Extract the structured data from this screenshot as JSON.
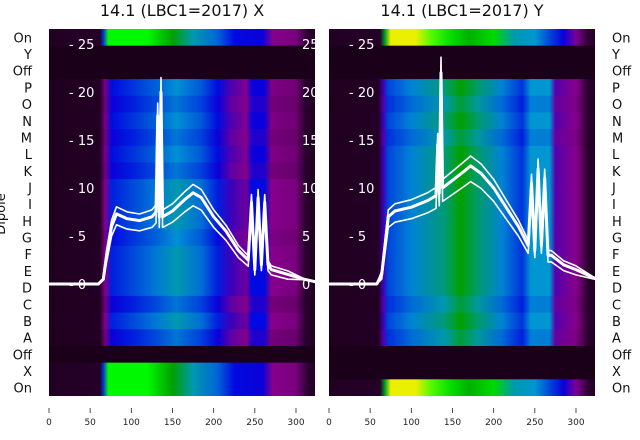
{
  "chart_data": [
    {
      "type": "heatmap",
      "title": "14.1 (LBC1=2017) X",
      "ylabel": "Dipole",
      "row_labels": [
        "On",
        "Y",
        "Off",
        "P",
        "O",
        "N",
        "M",
        "L",
        "K",
        "J",
        "I",
        "H",
        "G",
        "F",
        "E",
        "D",
        "C",
        "B",
        "A",
        "Off",
        "X",
        "On"
      ],
      "row_types": [
        "on",
        "dark",
        "dark",
        "main",
        "main",
        "main",
        "main",
        "main",
        "main",
        "main",
        "main",
        "main",
        "main",
        "main",
        "main",
        "main",
        "main",
        "main",
        "main",
        "dark",
        "on",
        "on"
      ],
      "row_gain": [
        1,
        1,
        1,
        0.95,
        0.9,
        0.95,
        0.9,
        0.95,
        0.9,
        1,
        1,
        1,
        0.95,
        1,
        1,
        1,
        0.9,
        1,
        0.9,
        1,
        1,
        1
      ],
      "row_label_side": "left",
      "xlim": [
        0,
        325
      ],
      "xticks": [
        "0",
        "50",
        "100",
        "150",
        "200",
        "250",
        "300"
      ],
      "overlay_ylim": [
        0,
        25
      ],
      "overlay_yticks": [
        "0",
        "5",
        "10",
        "15",
        "20",
        "25"
      ],
      "profiles": {
        "on": [
          [
            0,
            0.06
          ],
          [
            62,
            0.08
          ],
          [
            66,
            0.4
          ],
          [
            72,
            0.74
          ],
          [
            120,
            0.74
          ],
          [
            150,
            0.62
          ],
          [
            175,
            0.52
          ],
          [
            205,
            0.45
          ],
          [
            225,
            0.36
          ],
          [
            260,
            0.34
          ],
          [
            272,
            0.24
          ],
          [
            300,
            0.22
          ],
          [
            315,
            0.1
          ],
          [
            325,
            0.06
          ]
        ],
        "main": [
          [
            0,
            0.05
          ],
          [
            62,
            0.07
          ],
          [
            68,
            0.24
          ],
          [
            76,
            0.38
          ],
          [
            100,
            0.42
          ],
          [
            130,
            0.47
          ],
          [
            155,
            0.52
          ],
          [
            185,
            0.46
          ],
          [
            205,
            0.38
          ],
          [
            222,
            0.3
          ],
          [
            240,
            0.26
          ],
          [
            246,
            0.36
          ],
          [
            262,
            0.36
          ],
          [
            270,
            0.24
          ],
          [
            300,
            0.22
          ],
          [
            312,
            0.1
          ],
          [
            325,
            0.05
          ]
        ],
        "dark": [
          [
            0,
            0.02
          ],
          [
            325,
            0.02
          ]
        ]
      },
      "curve": [
        [
          0,
          0
        ],
        [
          60,
          0
        ],
        [
          66,
          0.5
        ],
        [
          70,
          3
        ],
        [
          76,
          6
        ],
        [
          82,
          7.3
        ],
        [
          95,
          6.8
        ],
        [
          110,
          6.6
        ],
        [
          125,
          7
        ],
        [
          130,
          7.5
        ],
        [
          132,
          17.5
        ],
        [
          134,
          7
        ],
        [
          136,
          20
        ],
        [
          138,
          7
        ],
        [
          150,
          7.6
        ],
        [
          165,
          8.8
        ],
        [
          175,
          9.5
        ],
        [
          185,
          9
        ],
        [
          200,
          7
        ],
        [
          215,
          5.5
        ],
        [
          230,
          3.5
        ],
        [
          242,
          2.5
        ],
        [
          246,
          8.5
        ],
        [
          250,
          1.5
        ],
        [
          254,
          9
        ],
        [
          258,
          2
        ],
        [
          262,
          8.5
        ],
        [
          266,
          2
        ],
        [
          270,
          1.5
        ],
        [
          290,
          1
        ],
        [
          310,
          0.5
        ],
        [
          325,
          0.2
        ]
      ]
    },
    {
      "type": "heatmap",
      "title": "14.1 (LBC1=2017) Y",
      "row_labels": [
        "On",
        "Y",
        "Off",
        "P",
        "O",
        "N",
        "M",
        "L",
        "K",
        "J",
        "I",
        "H",
        "G",
        "F",
        "E",
        "D",
        "C",
        "B",
        "A",
        "Off",
        "X",
        "On"
      ],
      "row_types": [
        "on",
        "dark",
        "dark",
        "main",
        "main",
        "main",
        "main",
        "main",
        "main",
        "main",
        "main",
        "main",
        "main",
        "main",
        "main",
        "main",
        "main",
        "main",
        "main",
        "dark",
        "dark",
        "on"
      ],
      "row_gain": [
        1,
        1,
        1,
        1,
        0.95,
        1,
        0.95,
        1,
        1,
        1,
        1,
        1,
        1,
        1,
        1,
        1,
        0.95,
        1,
        0.95,
        1,
        1,
        1
      ],
      "row_label_side": "right",
      "xlim": [
        0,
        325
      ],
      "xticks": [
        "0",
        "50",
        "100",
        "150",
        "200",
        "250",
        "300"
      ],
      "overlay_ylim": [
        0,
        25
      ],
      "overlay_yticks": [
        "0",
        "5",
        "10",
        "15",
        "20",
        "25"
      ],
      "profiles": {
        "on": [
          [
            0,
            0.06
          ],
          [
            62,
            0.08
          ],
          [
            68,
            0.6
          ],
          [
            75,
            0.9
          ],
          [
            105,
            0.9
          ],
          [
            125,
            0.8
          ],
          [
            150,
            0.7
          ],
          [
            170,
            0.64
          ],
          [
            200,
            0.7
          ],
          [
            225,
            0.52
          ],
          [
            250,
            0.5
          ],
          [
            268,
            0.42
          ],
          [
            285,
            0.34
          ],
          [
            300,
            0.25
          ],
          [
            315,
            0.12
          ],
          [
            325,
            0.06
          ]
        ],
        "main": [
          [
            0,
            0.05
          ],
          [
            60,
            0.07
          ],
          [
            66,
            0.3
          ],
          [
            72,
            0.42
          ],
          [
            100,
            0.48
          ],
          [
            140,
            0.55
          ],
          [
            160,
            0.62
          ],
          [
            180,
            0.56
          ],
          [
            210,
            0.48
          ],
          [
            235,
            0.4
          ],
          [
            245,
            0.5
          ],
          [
            268,
            0.5
          ],
          [
            275,
            0.28
          ],
          [
            300,
            0.24
          ],
          [
            315,
            0.1
          ],
          [
            325,
            0.05
          ]
        ],
        "dark": [
          [
            0,
            0.02
          ],
          [
            325,
            0.02
          ]
        ]
      },
      "curve": [
        [
          0,
          0
        ],
        [
          58,
          0
        ],
        [
          64,
          1
        ],
        [
          68,
          4
        ],
        [
          72,
          7
        ],
        [
          80,
          7.6
        ],
        [
          100,
          8
        ],
        [
          120,
          8.7
        ],
        [
          130,
          9.2
        ],
        [
          132,
          14.5
        ],
        [
          134,
          9.5
        ],
        [
          136,
          22
        ],
        [
          138,
          10
        ],
        [
          150,
          10.8
        ],
        [
          165,
          11.8
        ],
        [
          172,
          12.3
        ],
        [
          185,
          11.5
        ],
        [
          200,
          10
        ],
        [
          215,
          8
        ],
        [
          230,
          6
        ],
        [
          242,
          4
        ],
        [
          246,
          10.5
        ],
        [
          250,
          3.5
        ],
        [
          254,
          12
        ],
        [
          258,
          4
        ],
        [
          262,
          11
        ],
        [
          266,
          3
        ],
        [
          270,
          3
        ],
        [
          285,
          2
        ],
        [
          300,
          1.5
        ],
        [
          325,
          0.5
        ]
      ]
    }
  ]
}
